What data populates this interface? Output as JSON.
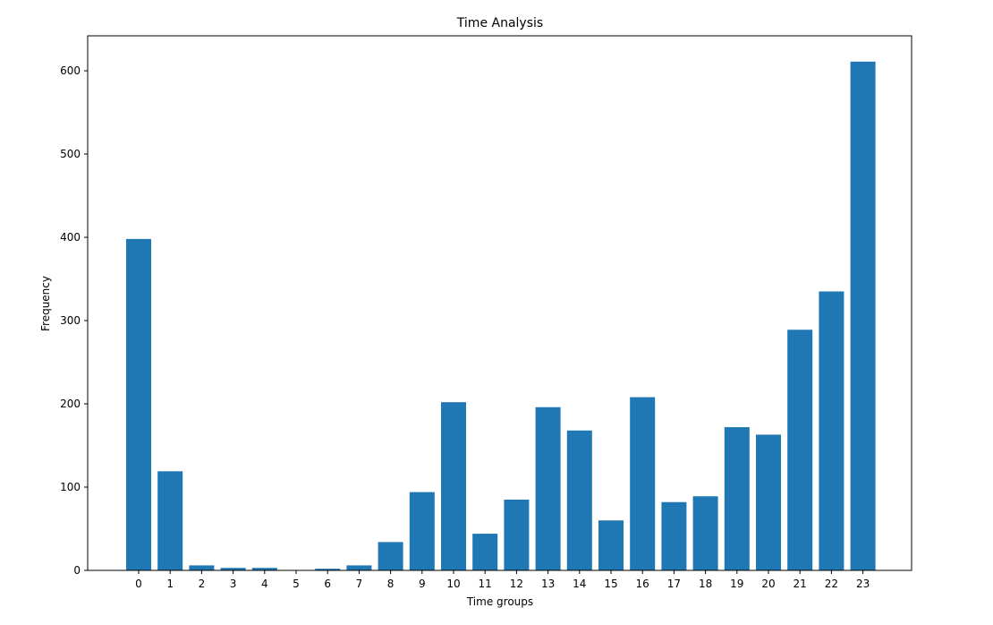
{
  "chart_data": {
    "type": "bar",
    "title": "Time Analysis",
    "xlabel": "Time groups",
    "ylabel": "Frequency",
    "categories": [
      "0",
      "1",
      "2",
      "3",
      "4",
      "5",
      "6",
      "7",
      "8",
      "9",
      "10",
      "11",
      "12",
      "13",
      "14",
      "15",
      "16",
      "17",
      "18",
      "19",
      "20",
      "21",
      "22",
      "23"
    ],
    "values": [
      398,
      119,
      6,
      3,
      3,
      0,
      2,
      6,
      34,
      94,
      202,
      44,
      85,
      196,
      168,
      60,
      208,
      82,
      89,
      172,
      163,
      289,
      335,
      611
    ],
    "ylim": [
      0,
      642
    ],
    "yticks": [
      0,
      100,
      200,
      300,
      400,
      500,
      600
    ],
    "grid": false,
    "bar_color": "#1f77b4"
  }
}
